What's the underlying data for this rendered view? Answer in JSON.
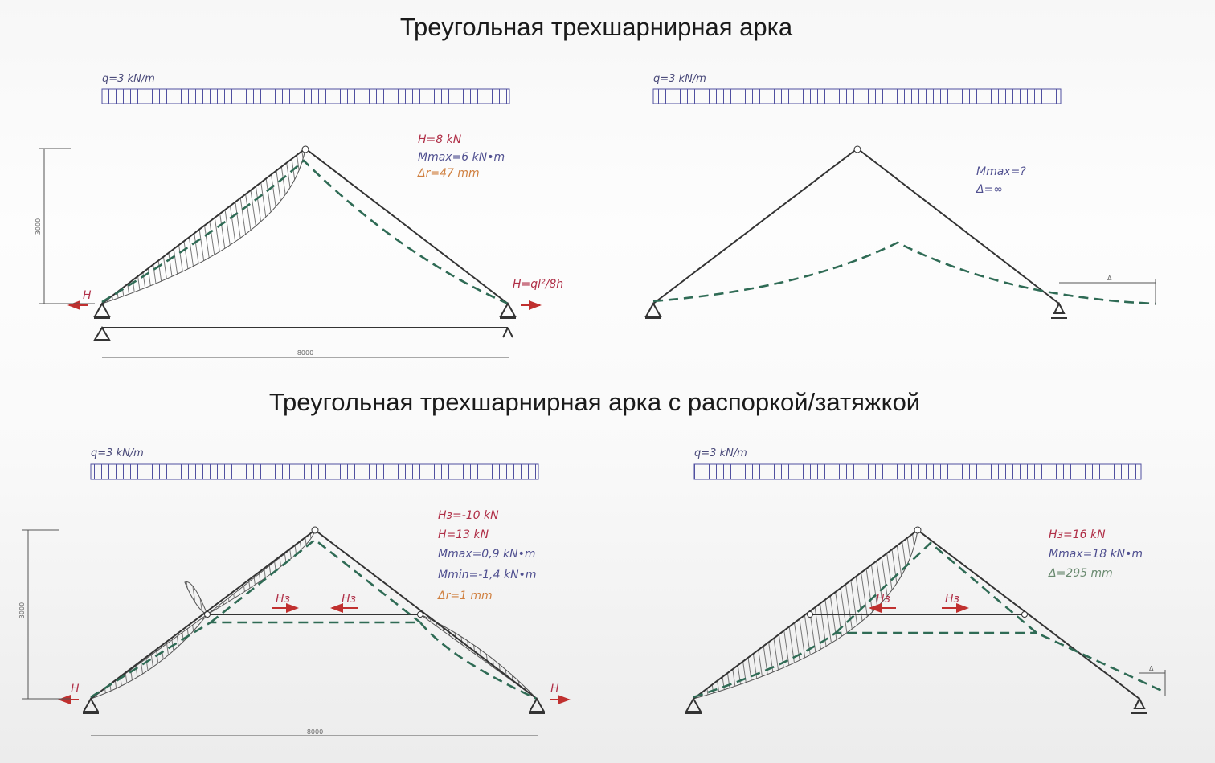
{
  "titles": {
    "top": "Треугольная трехшарнирная арка",
    "bottom": "Треугольная трехшарнирная арка с распоркой/затяжкой"
  },
  "colors": {
    "force": "#b03048",
    "moment": "#505090",
    "displacement": "#d08040",
    "deflection": "#2f6b55",
    "arrow": "#c0302f"
  },
  "panels": [
    {
      "load": "q=3 kN/m",
      "annotations": [
        {
          "text": "H=8 kN",
          "color": "#b03048"
        },
        {
          "text": "Mmax=6 kN•m",
          "color": "#505090"
        },
        {
          "text": "Δr=47 mm",
          "color": "#d08040"
        }
      ],
      "left_force": "H",
      "right_force": "H=ql²/8h",
      "dim_height": "3000",
      "dim_span": "8000"
    },
    {
      "load": "q=3 kN/m",
      "annotations": [
        {
          "text": "Mmax=?",
          "color": "#505090"
        },
        {
          "text": "Δ=∞",
          "color": "#505090"
        }
      ],
      "delta_label": "Δ"
    },
    {
      "load": "q=3 kN/m",
      "annotations": [
        {
          "text": "Hз=-10 kN",
          "color": "#b03048"
        },
        {
          "text": "H=13 kN",
          "color": "#b03048"
        },
        {
          "text": "Mmax=0,9 kN•m",
          "color": "#505090"
        },
        {
          "text": "Mmin=-1,4 kN•m",
          "color": "#505090"
        },
        {
          "text": "Δr=1 mm",
          "color": "#d08040"
        }
      ],
      "left_force": "H",
      "right_force": "H",
      "strut_force": "Hз",
      "dim_height": "3000",
      "dim_span": "8000"
    },
    {
      "load": "q=3 kN/m",
      "annotations": [
        {
          "text": "Hз=16 kN",
          "color": "#b03048"
        },
        {
          "text": "Mmax=18 kN•m",
          "color": "#505090"
        },
        {
          "text": "Δ=295 mm",
          "color": "#6a8a70"
        }
      ],
      "strut_force": "Hз",
      "delta_label": "Δ"
    }
  ]
}
